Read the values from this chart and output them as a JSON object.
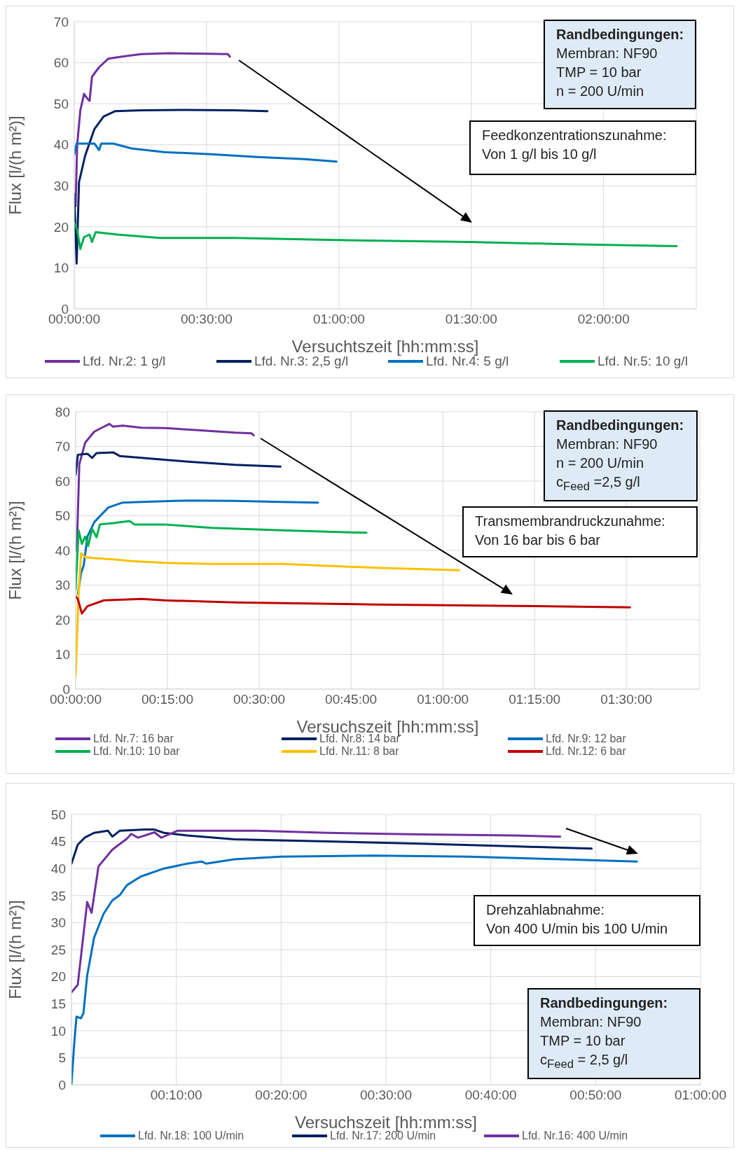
{
  "chart_data": [
    {
      "type": "line",
      "xlabel": "Versuchtszeit [hh:mm:ss]",
      "ylabel": "Flux [l/(h m²)]",
      "xlim": [
        0,
        2.35
      ],
      "ylim": [
        0,
        70
      ],
      "xticks": [
        {
          "value": 0,
          "label": "00:00:00"
        },
        {
          "value": 0.5,
          "label": "00:30:00"
        },
        {
          "value": 1,
          "label": "01:00:00"
        },
        {
          "value": 1.5,
          "label": "01:30:00"
        },
        {
          "value": 2,
          "label": "02:00:00"
        }
      ],
      "yticks": [
        0,
        10,
        20,
        30,
        40,
        50,
        60,
        70
      ],
      "grid": true,
      "legend": "bottom",
      "marker": "none",
      "annotations": [
        "Randbedingungen:",
        "Membran: NF90",
        "TMP = 10 bar",
        "n = 200 U/min",
        "Feedkonzentrationszunahme:",
        "Von 1 g/l bis 10 g/l"
      ],
      "series": [
        {
          "name": "Lfd. Nr.2: 1 g/l",
          "color": "#7030a0",
          "x": [
            0.005,
            0.011,
            0.023,
            0.037,
            0.049,
            0.058,
            0.067,
            0.094,
            0.129,
            0.182,
            0.253,
            0.359,
            0.5,
            0.58,
            0.588
          ],
          "values": [
            25,
            40,
            48.4,
            52.4,
            51.3,
            50.7,
            56.6,
            58.9,
            61,
            61.5,
            62.1,
            62.3,
            62.2,
            62.1,
            61.5
          ]
        },
        {
          "name": "Lfd. Nr.3: 2,5 g/l",
          "color": "#002060",
          "x": [
            0,
            0.009,
            0.018,
            0.041,
            0.076,
            0.111,
            0.155,
            0.253,
            0.43,
            0.606,
            0.73
          ],
          "values": [
            28,
            11,
            30.9,
            37.3,
            43.8,
            46.9,
            48.2,
            48.4,
            48.5,
            48.4,
            48.2
          ]
        },
        {
          "name": "Lfd. Nr.4: 5 g/l",
          "color": "#0070c0",
          "x": [
            0,
            0.009,
            0.076,
            0.094,
            0.102,
            0.147,
            0.217,
            0.341,
            0.518,
            0.694,
            0.871,
            0.991
          ],
          "values": [
            37.6,
            40.3,
            40.3,
            38.7,
            40.3,
            40.3,
            39.1,
            38.2,
            37.7,
            37,
            36.5,
            35.9
          ]
        },
        {
          "name": "Lfd. Nr.5: 10 g/l",
          "color": "#00b050",
          "x": [
            0,
            0.011,
            0.023,
            0.037,
            0.058,
            0.067,
            0.081,
            0.164,
            0.323,
            0.606,
            0.959,
            1.489,
            1.841,
            2.276
          ],
          "values": [
            21,
            19.3,
            14.6,
            17.5,
            18.1,
            16.3,
            18.7,
            18.1,
            17.3,
            17.3,
            16.8,
            16.3,
            15.8,
            15.3
          ]
        }
      ]
    },
    {
      "type": "line",
      "xlabel": "Versuchszeit [hh:mm:ss]",
      "ylabel": "Flux [l/(h m²)]",
      "xlim": [
        0,
        1.7
      ],
      "ylim": [
        0,
        80
      ],
      "xticks": [
        {
          "value": 0,
          "label": "00:00:00"
        },
        {
          "value": 0.25,
          "label": "00:15:00"
        },
        {
          "value": 0.5,
          "label": "00:30:00"
        },
        {
          "value": 0.75,
          "label": "00:45:00"
        },
        {
          "value": 1,
          "label": "01:00:00"
        },
        {
          "value": 1.25,
          "label": "01:15:00"
        },
        {
          "value": 1.5,
          "label": "01:30:00"
        }
      ],
      "yticks": [
        0,
        10,
        20,
        30,
        40,
        50,
        60,
        70,
        80
      ],
      "grid": true,
      "legend": "bottom",
      "marker": "none",
      "annotations": [
        "Randbedingungen:",
        "Membran: NF90",
        "n = 200 U/min",
        "c$_{Feed}$ =2,5 g/l",
        "Transmembrandruckzunahme:",
        "Von 16 bar bis 6 bar"
      ],
      "series": [
        {
          "name": "Lfd. Nr.7: 16 bar",
          "color": "#7030a0",
          "x": [
            0.003,
            0.01,
            0.026,
            0.051,
            0.077,
            0.092,
            0.102,
            0.128,
            0.179,
            0.243,
            0.332,
            0.434,
            0.479,
            0.485
          ],
          "values": [
            39.9,
            64.9,
            71.1,
            74.3,
            75.7,
            76.5,
            75.7,
            76,
            75.4,
            75.3,
            74.7,
            74,
            73.8,
            73.2
          ]
        },
        {
          "name": "Lfd. Nr.8: 14 bar",
          "color": "#002060",
          "x": [
            0,
            0.006,
            0.032,
            0.045,
            0.057,
            0.102,
            0.121,
            0.179,
            0.307,
            0.434,
            0.558
          ],
          "values": [
            61.8,
            67.6,
            67.9,
            66.7,
            68.1,
            68.3,
            67.2,
            66.7,
            65.6,
            64.7,
            64.2
          ]
        },
        {
          "name": "Lfd. Nr.9: 12 bar",
          "color": "#0070c0",
          "x": [
            0.006,
            0.015,
            0.022,
            0.032,
            0.051,
            0.089,
            0.128,
            0.179,
            0.307,
            0.434,
            0.562,
            0.66
          ],
          "values": [
            27.4,
            33.6,
            35.7,
            44,
            48.2,
            52.4,
            53.8,
            54,
            54.4,
            54.3,
            54,
            53.8
          ]
        },
        {
          "name": "Lfd. Nr.10: 10 bar",
          "color": "#00b050",
          "x": [
            0,
            0.008,
            0.017,
            0.026,
            0.034,
            0.045,
            0.057,
            0.066,
            0.102,
            0.147,
            0.16,
            0.243,
            0.37,
            0.562,
            0.792
          ],
          "values": [
            28.8,
            45.8,
            41.9,
            44,
            41.3,
            46.2,
            43.8,
            47.5,
            47.9,
            48.5,
            47.5,
            47.5,
            46.5,
            45.8,
            45.1
          ]
        },
        {
          "name": "Lfd. Nr.11: 8 bar",
          "color": "#ffc000",
          "x": [
            0,
            0.008,
            0.015,
            0.026,
            0.051,
            0.102,
            0.153,
            0.243,
            0.37,
            0.562,
            0.817,
            1.045
          ],
          "values": [
            3.8,
            27.4,
            39.2,
            38.1,
            37.8,
            37.4,
            36.9,
            36.4,
            36.1,
            36.1,
            35,
            34.3
          ]
        },
        {
          "name": "Lfd. Nr.12: 6 bar",
          "color": "#c00000",
          "x": [
            0,
            0.006,
            0.017,
            0.032,
            0.077,
            0.179,
            0.243,
            0.434,
            0.817,
            1.2,
            1.51
          ],
          "values": [
            26.7,
            26,
            21.8,
            23.9,
            25.6,
            26,
            25.6,
            25,
            24.4,
            24,
            23.6
          ]
        }
      ]
    },
    {
      "type": "line",
      "xlabel": "Versuchszeit [hh:mm:ss]",
      "ylabel": "Flux [l/(h m²)]",
      "xlim": [
        0,
        1
      ],
      "ylim": [
        0,
        50
      ],
      "xticks": [
        {
          "value": 0,
          "label": null
        },
        {
          "value": 0.1667,
          "label": "00:10:00"
        },
        {
          "value": 0.3333,
          "label": "00:20:00"
        },
        {
          "value": 0.5,
          "label": "00:30:00"
        },
        {
          "value": 0.6667,
          "label": "00:40:00"
        },
        {
          "value": 0.8333,
          "label": "00:50:00"
        },
        {
          "value": 1,
          "label": "01:00:00"
        }
      ],
      "yticks": [
        0,
        5,
        10,
        15,
        20,
        25,
        30,
        35,
        40,
        45,
        50
      ],
      "grid": true,
      "legend": "bottom",
      "marker": "none",
      "annotations": [
        "Drehzahlabnahme:",
        "Von 400 U/min bis 100 U/min",
        "Randbedingungen:",
        "Membran: NF90",
        "TMP = 10 bar",
        "c$_{Feed}$ = 2,5 g/l"
      ],
      "series": [
        {
          "name": "Lfd. Nr.18: 100 U/min",
          "color": "#0070c0",
          "x": [
            0,
            0.004,
            0.008,
            0.015,
            0.019,
            0.025,
            0.036,
            0.051,
            0.065,
            0.077,
            0.088,
            0.11,
            0.147,
            0.184,
            0.207,
            0.214,
            0.259,
            0.333,
            0.481,
            0.63,
            0.779,
            0.899
          ],
          "values": [
            0,
            7,
            12.6,
            12.3,
            13.2,
            20.2,
            27.2,
            31.6,
            34.1,
            35.1,
            36.9,
            38.5,
            40,
            40.9,
            41.3,
            40.9,
            41.7,
            42.2,
            42.4,
            42.2,
            41.7,
            41.3
          ]
        },
        {
          "name": "Lfd. Nr.17: 200 U/min",
          "color": "#002060",
          "x": [
            0,
            0.01,
            0.021,
            0.036,
            0.058,
            0.065,
            0.077,
            0.117,
            0.132,
            0.147,
            0.184,
            0.259,
            0.407,
            0.556,
            0.704,
            0.827
          ],
          "values": [
            40.9,
            44.4,
            45.7,
            46.6,
            47,
            45.9,
            47,
            47.2,
            47.2,
            46.6,
            46.1,
            45.4,
            45,
            44.6,
            44.1,
            43.7
          ]
        },
        {
          "name": "Lfd. Nr.16: 400 U/min",
          "color": "#7030a0",
          "x": [
            0,
            0.01,
            0.025,
            0.032,
            0.043,
            0.065,
            0.088,
            0.095,
            0.106,
            0.132,
            0.143,
            0.169,
            0.221,
            0.296,
            0.407,
            0.556,
            0.704,
            0.777
          ],
          "values": [
            17.1,
            18.5,
            33.8,
            31.8,
            40.4,
            43.5,
            45.5,
            46.4,
            45.7,
            46.7,
            45.7,
            47,
            47,
            47,
            46.6,
            46.3,
            46.1,
            45.9
          ]
        }
      ]
    }
  ]
}
